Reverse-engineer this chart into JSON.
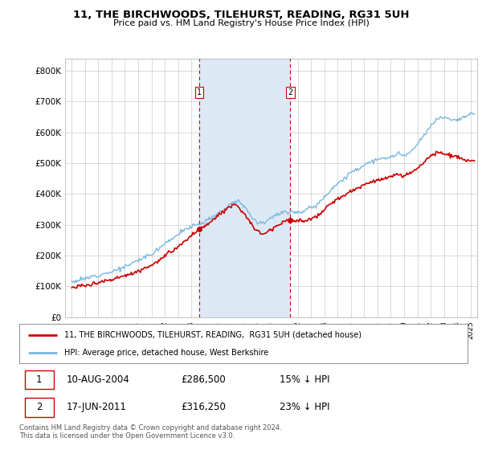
{
  "title": "11, THE BIRCHWOODS, TILEHURST, READING, RG31 5UH",
  "subtitle": "Price paid vs. HM Land Registry's House Price Index (HPI)",
  "ylabel_ticks": [
    "£0",
    "£100K",
    "£200K",
    "£300K",
    "£400K",
    "£500K",
    "£600K",
    "£700K",
    "£800K"
  ],
  "ytick_values": [
    0,
    100000,
    200000,
    300000,
    400000,
    500000,
    600000,
    700000,
    800000
  ],
  "ylim": [
    0,
    840000
  ],
  "xlim_start": 1994.5,
  "xlim_end": 2025.5,
  "transaction1_date": 2004.6,
  "transaction1_price": 286500,
  "transaction1_label": "1",
  "transaction2_date": 2011.45,
  "transaction2_price": 316250,
  "transaction2_label": "2",
  "legend_line1": "11, THE BIRCHWOODS, TILEHURST, READING,  RG31 5UH (detached house)",
  "legend_line2": "HPI: Average price, detached house, West Berkshire",
  "table_row1": [
    "1",
    "10-AUG-2004",
    "£286,500",
    "15% ↓ HPI"
  ],
  "table_row2": [
    "2",
    "17-JUN-2011",
    "£316,250",
    "23% ↓ HPI"
  ],
  "footnote": "Contains HM Land Registry data © Crown copyright and database right 2024.\nThis data is licensed under the Open Government Licence v3.0.",
  "hpi_color": "#7ab8e0",
  "price_color": "#cc0000",
  "vline_color": "#cc0000",
  "shade_color": "#dce9f5",
  "background_color": "#ffffff",
  "grid_color": "#cccccc",
  "hpi_keypoints": [
    [
      1995.0,
      115000
    ],
    [
      1996.0,
      125000
    ],
    [
      1997.0,
      138000
    ],
    [
      1998.0,
      148000
    ],
    [
      1999.0,
      163000
    ],
    [
      2000.0,
      185000
    ],
    [
      2001.0,
      205000
    ],
    [
      2002.0,
      240000
    ],
    [
      2003.0,
      270000
    ],
    [
      2004.0,
      295000
    ],
    [
      2005.0,
      310000
    ],
    [
      2006.0,
      335000
    ],
    [
      2007.0,
      370000
    ],
    [
      2007.5,
      380000
    ],
    [
      2008.0,
      360000
    ],
    [
      2008.5,
      330000
    ],
    [
      2009.0,
      305000
    ],
    [
      2009.5,
      310000
    ],
    [
      2010.0,
      325000
    ],
    [
      2010.5,
      335000
    ],
    [
      2011.0,
      340000
    ],
    [
      2011.5,
      345000
    ],
    [
      2012.0,
      340000
    ],
    [
      2012.5,
      345000
    ],
    [
      2013.0,
      355000
    ],
    [
      2013.5,
      368000
    ],
    [
      2014.0,
      390000
    ],
    [
      2014.5,
      415000
    ],
    [
      2015.0,
      435000
    ],
    [
      2015.5,
      450000
    ],
    [
      2016.0,
      470000
    ],
    [
      2016.5,
      480000
    ],
    [
      2017.0,
      495000
    ],
    [
      2017.5,
      505000
    ],
    [
      2018.0,
      510000
    ],
    [
      2018.5,
      515000
    ],
    [
      2019.0,
      520000
    ],
    [
      2019.5,
      530000
    ],
    [
      2020.0,
      525000
    ],
    [
      2020.5,
      535000
    ],
    [
      2021.0,
      560000
    ],
    [
      2021.5,
      590000
    ],
    [
      2022.0,
      620000
    ],
    [
      2022.5,
      645000
    ],
    [
      2023.0,
      650000
    ],
    [
      2023.5,
      645000
    ],
    [
      2024.0,
      640000
    ],
    [
      2024.5,
      650000
    ],
    [
      2025.0,
      660000
    ]
  ],
  "red_keypoints": [
    [
      1995.0,
      95000
    ],
    [
      1996.0,
      103000
    ],
    [
      1997.0,
      113000
    ],
    [
      1998.0,
      122000
    ],
    [
      1999.0,
      135000
    ],
    [
      2000.0,
      150000
    ],
    [
      2001.0,
      168000
    ],
    [
      2002.0,
      198000
    ],
    [
      2003.0,
      228000
    ],
    [
      2004.0,
      265000
    ],
    [
      2004.6,
      286500
    ],
    [
      2005.0,
      295000
    ],
    [
      2005.5,
      310000
    ],
    [
      2006.0,
      330000
    ],
    [
      2006.5,
      350000
    ],
    [
      2007.0,
      360000
    ],
    [
      2007.3,
      370000
    ],
    [
      2007.8,
      345000
    ],
    [
      2008.3,
      315000
    ],
    [
      2008.8,
      285000
    ],
    [
      2009.3,
      270000
    ],
    [
      2009.8,
      280000
    ],
    [
      2010.3,
      295000
    ],
    [
      2010.8,
      308000
    ],
    [
      2011.45,
      316250
    ],
    [
      2012.0,
      315000
    ],
    [
      2012.5,
      310000
    ],
    [
      2013.0,
      318000
    ],
    [
      2013.5,
      330000
    ],
    [
      2014.0,
      348000
    ],
    [
      2014.5,
      368000
    ],
    [
      2015.0,
      385000
    ],
    [
      2015.5,
      395000
    ],
    [
      2016.0,
      408000
    ],
    [
      2016.5,
      418000
    ],
    [
      2017.0,
      430000
    ],
    [
      2017.5,
      440000
    ],
    [
      2018.0,
      445000
    ],
    [
      2018.5,
      450000
    ],
    [
      2019.0,
      455000
    ],
    [
      2019.5,
      462000
    ],
    [
      2020.0,
      458000
    ],
    [
      2020.5,
      468000
    ],
    [
      2021.0,
      485000
    ],
    [
      2021.5,
      505000
    ],
    [
      2022.0,
      525000
    ],
    [
      2022.5,
      535000
    ],
    [
      2023.0,
      530000
    ],
    [
      2023.5,
      525000
    ],
    [
      2024.0,
      520000
    ],
    [
      2024.5,
      510000
    ],
    [
      2025.0,
      505000
    ]
  ]
}
